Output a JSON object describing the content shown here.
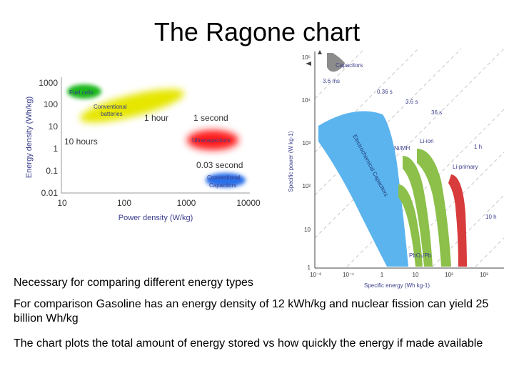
{
  "slide": {
    "title": "The Ragone chart",
    "bullets": [
      "Necessary for comparing different energy types",
      "For comparison Gasoline has an energy density of 12 kWh/kg and nuclear fission can yield 25 billion Wh/kg",
      "The chart plots the total amount of energy stored vs how quickly the energy if made available"
    ]
  },
  "chart_data": [
    {
      "type": "scatter",
      "title": "",
      "xlabel": "Power density (W/kg)",
      "ylabel": "Energy density (Wh/kg)",
      "x_scale": "log",
      "y_scale": "log",
      "xlim": [
        10,
        10000
      ],
      "ylim": [
        0.01,
        1000
      ],
      "x_ticks": [
        "10",
        "100",
        "1000",
        "10000"
      ],
      "y_ticks": [
        "1000",
        "100",
        "10",
        "1",
        "0.1",
        "0.01"
      ],
      "grid": false,
      "colors": {
        "axis": "#9a9a9a",
        "text": "#3b3f8c"
      },
      "regions": [
        {
          "label": "Fuel cells",
          "color": "#1db81d",
          "x_range": [
            10,
            60
          ],
          "y_range": [
            150,
            500
          ]
        },
        {
          "label": "Conventional batteries",
          "color": "#e6e600",
          "x_range": [
            15,
            800
          ],
          "y_range": [
            5,
            200
          ]
        },
        {
          "label": "Ultracapacitors",
          "color": "#ff1a1a",
          "x_range": [
            1000,
            5000
          ],
          "y_range": [
            0.5,
            8
          ]
        },
        {
          "label": "Conventional Capacitors",
          "color": "#2a6fe8",
          "x_range": [
            2000,
            8000
          ],
          "y_range": [
            0.01,
            0.08
          ]
        }
      ],
      "time_labels": [
        {
          "text": "1 hour",
          "x": 200,
          "y": 12
        },
        {
          "text": "1 second",
          "x": 3000,
          "y": 12
        },
        {
          "text": "10 hours",
          "x": 30,
          "y": 1.3
        },
        {
          "text": "0.03 second",
          "x": 4000,
          "y": 0.12
        }
      ]
    },
    {
      "type": "area",
      "title": "",
      "xlabel": "Specific energy (Wh kg-1)",
      "ylabel": "Specific power (W kg-1)",
      "x_scale": "log",
      "y_scale": "log",
      "xlim": [
        0.01,
        1000
      ],
      "ylim": [
        1,
        100000
      ],
      "x_ticks": [
        "10⁻²",
        "10⁻¹",
        "1",
        "10",
        "10²",
        "10³"
      ],
      "y_ticks": [
        "10⁵",
        "10⁴",
        "10³",
        "10²",
        "10",
        "1"
      ],
      "grid": false,
      "colors": {
        "axis": "#444444",
        "text": "#3b3f8c"
      },
      "regions": [
        {
          "label": "Capacitors",
          "color": "#8c8c8c"
        },
        {
          "label": "Electrochemical Capacitors",
          "color": "#5bb4ee"
        },
        {
          "label": "Ni/MH",
          "color": "#8cc04a"
        },
        {
          "label": "Li-ion",
          "color": "#8cc04a"
        },
        {
          "label": "PbO₂/Pb",
          "color": "#8cc04a"
        },
        {
          "label": "Li-primary",
          "color": "#d83b3b"
        }
      ],
      "time_lines": [
        "3.6 ms",
        "0.36 s",
        "3.6 s",
        "36 s",
        "1 h",
        "10 h"
      ]
    }
  ]
}
